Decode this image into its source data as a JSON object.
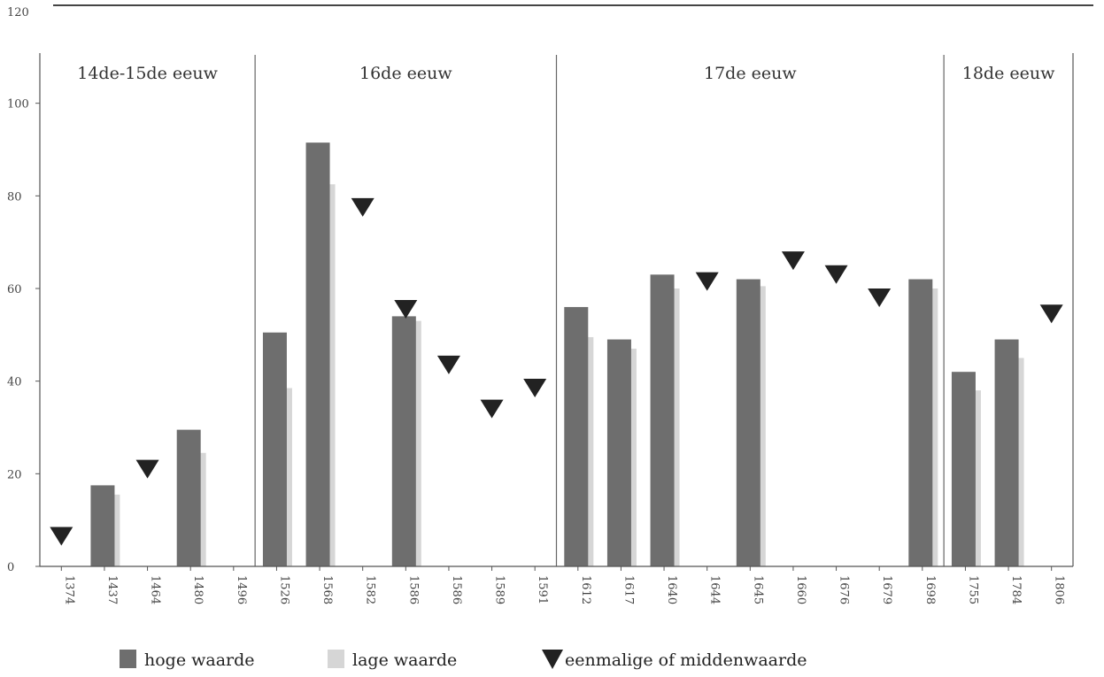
{
  "chart_data": {
    "type": "bar",
    "ylim": [
      0,
      120
    ],
    "y_ticks": [
      0,
      20,
      40,
      60,
      80,
      100,
      120
    ],
    "categories": [
      "1374",
      "1437",
      "1464",
      "1480",
      "1496",
      "1526",
      "1568",
      "1582",
      "1586",
      "1586",
      "1589",
      "1591",
      "1612",
      "1617",
      "1640",
      "1644",
      "1645",
      "1660",
      "1676",
      "1679",
      "1698",
      "1755",
      "1784",
      "1806"
    ],
    "series": [
      {
        "name": "hoge waarde",
        "kind": "bar",
        "color": "#6e6e6e",
        "values": [
          null,
          17.5,
          null,
          29.5,
          null,
          50.5,
          91.5,
          null,
          54,
          null,
          null,
          null,
          56,
          49,
          63,
          null,
          62,
          null,
          null,
          null,
          62,
          42,
          49,
          null
        ]
      },
      {
        "name": "lage waarde",
        "kind": "bar",
        "color": "#d6d6d6",
        "values": [
          null,
          15.5,
          null,
          24.5,
          null,
          38.5,
          82.5,
          null,
          53,
          null,
          null,
          null,
          49.5,
          47,
          60,
          null,
          60.5,
          null,
          null,
          null,
          60,
          38,
          45,
          null
        ]
      },
      {
        "name": "eenmalige of middenwaarde",
        "kind": "marker",
        "marker": "triangle-down",
        "color": "#222222",
        "values": [
          6.5,
          null,
          21,
          null,
          null,
          null,
          null,
          77.5,
          55.5,
          43.5,
          34,
          38.5,
          null,
          null,
          null,
          61.5,
          null,
          66,
          63,
          58,
          null,
          null,
          null,
          54.5
        ]
      }
    ],
    "periods": [
      {
        "label": "14de-15de eeuw",
        "start": 0,
        "end": 4
      },
      {
        "label": "16de eeuw",
        "start": 5,
        "end": 11
      },
      {
        "label": "17de eeuw",
        "start": 12,
        "end": 20
      },
      {
        "label": "18de eeuw",
        "start": 21,
        "end": 23
      }
    ],
    "legend": {
      "placement": "bottom",
      "items": [
        {
          "label": "hoge waarde",
          "swatch": "bar",
          "color": "#6e6e6e"
        },
        {
          "label": "lage waarde",
          "swatch": "bar",
          "color": "#d6d6d6"
        },
        {
          "label": "eenmalige of middenwaarde",
          "swatch": "triangle-down",
          "color": "#222222"
        }
      ]
    },
    "colors": {
      "axis": "#555555",
      "divider": "#666666",
      "text": "#333333"
    }
  }
}
